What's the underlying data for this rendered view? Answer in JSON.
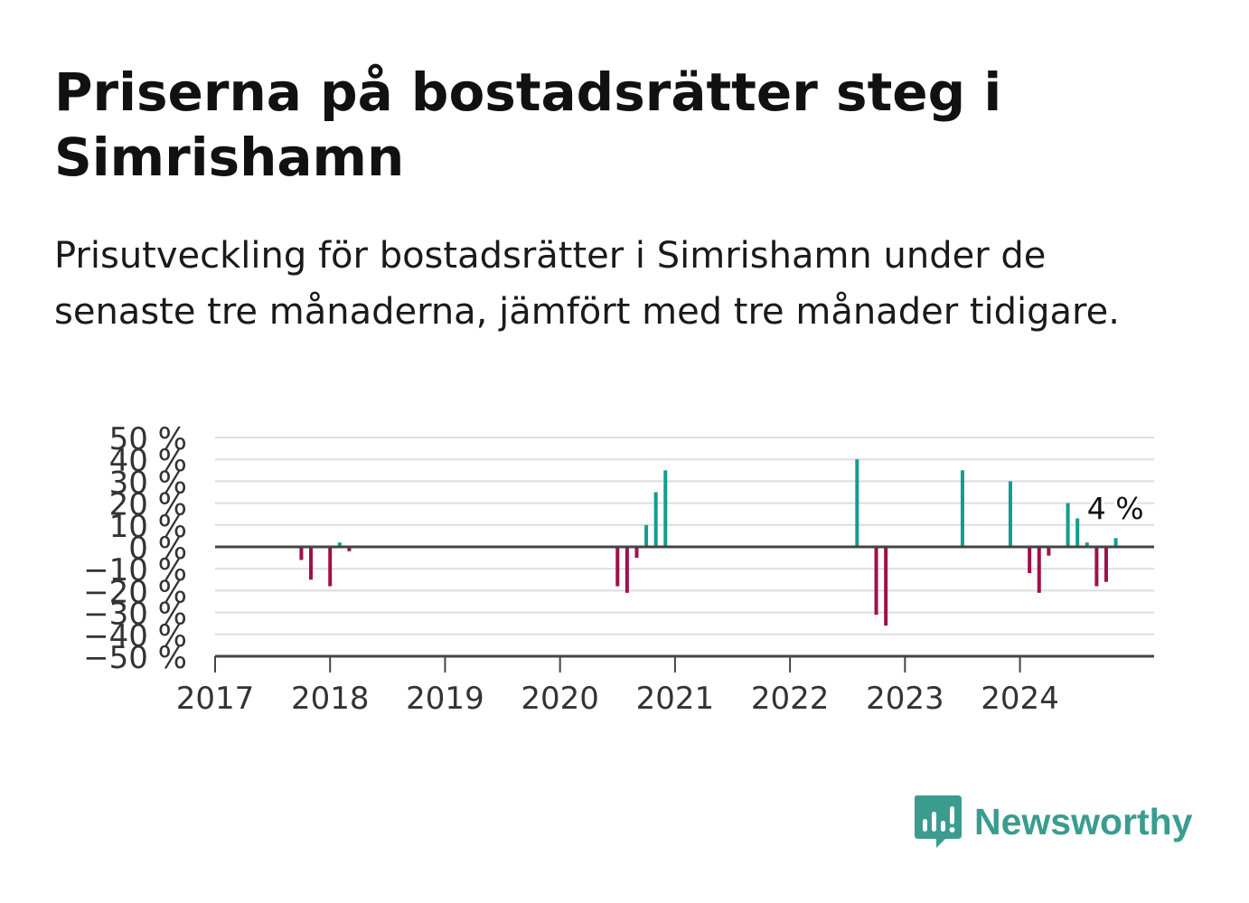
{
  "title": "Priserna på bostadsrätter steg i Simrishamn",
  "subtitle": "Prisutveckling för bostadsrätter i Simrishamn under de senaste tre månaderna, jämfört med tre månader tidigare.",
  "brand": {
    "name": "Newsworthy",
    "color": "#3a9c8f",
    "icon": "newsworthy-logo-icon"
  },
  "chart_data": {
    "type": "bar",
    "x_unit": "month",
    "xlim": [
      "2017-01",
      "2025-03"
    ],
    "ylim": [
      -50,
      50
    ],
    "grid": true,
    "colors": {
      "positive": "#149c91",
      "negative": "#a0104a",
      "axis": "#444444",
      "grid": "#dddddd"
    },
    "y_ticks": [
      "50 %",
      "40 %",
      "30 %",
      "20 %",
      "10 %",
      "0 %",
      "−10 %",
      "−20 %",
      "−30 %",
      "−40 %",
      "−50 %"
    ],
    "y_tick_values": [
      50,
      40,
      30,
      20,
      10,
      0,
      -10,
      -20,
      -30,
      -40,
      -50
    ],
    "x_ticks": [
      "2017",
      "2018",
      "2019",
      "2020",
      "2021",
      "2022",
      "2023",
      "2024"
    ],
    "x_tick_values": [
      "2017-01",
      "2018-01",
      "2019-01",
      "2020-01",
      "2021-01",
      "2022-01",
      "2023-01",
      "2024-01"
    ],
    "annotation": {
      "text": "4 %",
      "x": "2024-11"
    },
    "x": [
      "2017-10",
      "2017-11",
      "2018-01",
      "2018-02",
      "2018-03",
      "2020-07",
      "2020-08",
      "2020-09",
      "2020-10",
      "2020-11",
      "2020-12",
      "2022-08",
      "2022-10",
      "2022-11",
      "2023-07",
      "2023-12",
      "2024-02",
      "2024-03",
      "2024-04",
      "2024-06",
      "2024-07",
      "2024-08",
      "2024-09",
      "2024-10",
      "2024-11"
    ],
    "values": [
      -6,
      -15,
      -18,
      2,
      -2,
      -18,
      -21,
      -5,
      10,
      25,
      35,
      40,
      -31,
      -36,
      35,
      30,
      -12,
      -21,
      -4,
      20,
      13,
      2,
      -18,
      -16,
      4
    ]
  }
}
